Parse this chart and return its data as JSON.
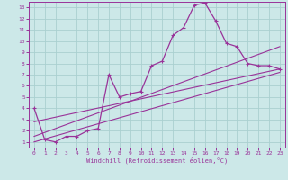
{
  "xlabel": "Windchill (Refroidissement éolien,°C)",
  "background_color": "#cce8e8",
  "grid_color": "#aad0d0",
  "line_color": "#993399",
  "xlim": [
    -0.5,
    23.5
  ],
  "ylim": [
    0.5,
    13.5
  ],
  "xticks": [
    0,
    1,
    2,
    3,
    4,
    5,
    6,
    7,
    8,
    9,
    10,
    11,
    12,
    13,
    14,
    15,
    16,
    17,
    18,
    19,
    20,
    21,
    22,
    23
  ],
  "yticks": [
    1,
    2,
    3,
    4,
    5,
    6,
    7,
    8,
    9,
    10,
    11,
    12,
    13
  ],
  "series1_x": [
    0,
    1,
    2,
    3,
    4,
    5,
    6,
    7,
    8,
    9,
    10,
    11,
    12,
    13,
    14,
    15,
    16,
    17,
    18,
    19,
    20,
    21,
    22,
    23
  ],
  "series1_y": [
    4.0,
    1.2,
    1.0,
    1.5,
    1.5,
    2.0,
    2.2,
    7.0,
    5.0,
    5.3,
    5.5,
    7.8,
    8.2,
    10.5,
    11.2,
    13.2,
    13.4,
    11.8,
    9.8,
    9.5,
    8.0,
    7.8,
    7.8,
    7.5
  ],
  "line2_x": [
    0,
    23
  ],
  "line2_y": [
    1.0,
    7.2
  ],
  "line3_x": [
    0,
    23
  ],
  "line3_y": [
    1.5,
    9.5
  ],
  "line4_x": [
    0,
    23
  ],
  "line4_y": [
    2.8,
    7.5
  ]
}
